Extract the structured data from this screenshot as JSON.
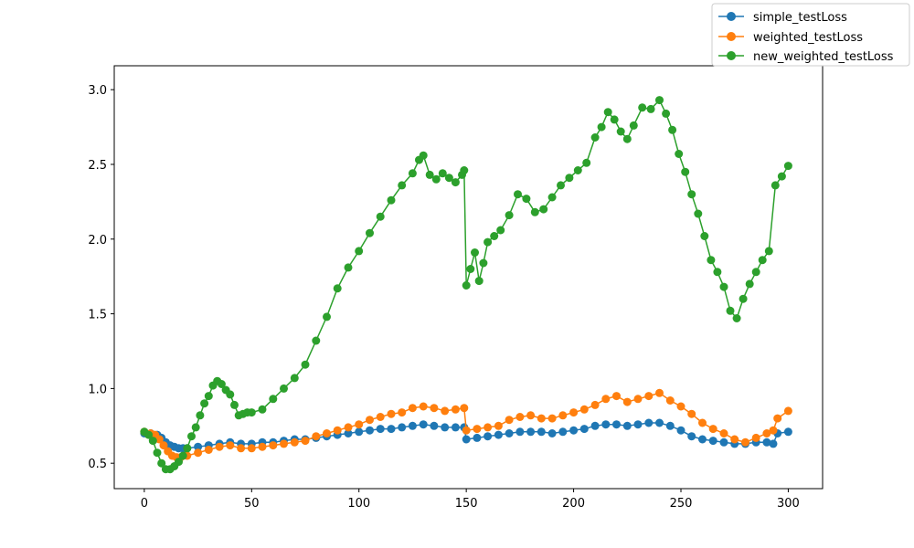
{
  "chart_data": {
    "type": "line",
    "title": "",
    "xlabel": "",
    "ylabel": "",
    "xlim": [
      -14,
      316
    ],
    "ylim": [
      0.33,
      3.16
    ],
    "x_ticks": [
      0,
      50,
      100,
      150,
      200,
      250,
      300
    ],
    "y_ticks": [
      0.5,
      1.0,
      1.5,
      2.0,
      2.5,
      3.0
    ],
    "x_tick_labels": [
      "0",
      "50",
      "100",
      "150",
      "200",
      "250",
      "300"
    ],
    "y_tick_labels": [
      "0.5",
      "1.0",
      "1.5",
      "2.0",
      "2.5",
      "3.0"
    ],
    "grid": false,
    "legend_position": "top-right",
    "marker": "circle",
    "series": [
      {
        "name": "simple_testLoss",
        "color": "#1f77b4",
        "points": [
          [
            0,
            0.7
          ],
          [
            3,
            0.7
          ],
          [
            6,
            0.69
          ],
          [
            8,
            0.67
          ],
          [
            10,
            0.64
          ],
          [
            12,
            0.62
          ],
          [
            14,
            0.61
          ],
          [
            16,
            0.6
          ],
          [
            18,
            0.6
          ],
          [
            20,
            0.6
          ],
          [
            25,
            0.61
          ],
          [
            30,
            0.62
          ],
          [
            35,
            0.63
          ],
          [
            40,
            0.64
          ],
          [
            45,
            0.63
          ],
          [
            50,
            0.63
          ],
          [
            55,
            0.64
          ],
          [
            60,
            0.64
          ],
          [
            65,
            0.65
          ],
          [
            70,
            0.66
          ],
          [
            75,
            0.66
          ],
          [
            80,
            0.67
          ],
          [
            85,
            0.68
          ],
          [
            90,
            0.69
          ],
          [
            95,
            0.7
          ],
          [
            100,
            0.71
          ],
          [
            105,
            0.72
          ],
          [
            110,
            0.73
          ],
          [
            115,
            0.73
          ],
          [
            120,
            0.74
          ],
          [
            125,
            0.75
          ],
          [
            130,
            0.76
          ],
          [
            135,
            0.75
          ],
          [
            140,
            0.74
          ],
          [
            145,
            0.74
          ],
          [
            149,
            0.74
          ],
          [
            150,
            0.66
          ],
          [
            155,
            0.67
          ],
          [
            160,
            0.68
          ],
          [
            165,
            0.69
          ],
          [
            170,
            0.7
          ],
          [
            175,
            0.71
          ],
          [
            180,
            0.71
          ],
          [
            185,
            0.71
          ],
          [
            190,
            0.7
          ],
          [
            195,
            0.71
          ],
          [
            200,
            0.72
          ],
          [
            205,
            0.73
          ],
          [
            210,
            0.75
          ],
          [
            215,
            0.76
          ],
          [
            220,
            0.76
          ],
          [
            225,
            0.75
          ],
          [
            230,
            0.76
          ],
          [
            235,
            0.77
          ],
          [
            240,
            0.77
          ],
          [
            245,
            0.75
          ],
          [
            250,
            0.72
          ],
          [
            255,
            0.68
          ],
          [
            260,
            0.66
          ],
          [
            265,
            0.65
          ],
          [
            270,
            0.64
          ],
          [
            275,
            0.63
          ],
          [
            280,
            0.63
          ],
          [
            285,
            0.64
          ],
          [
            290,
            0.64
          ],
          [
            293,
            0.63
          ],
          [
            295,
            0.7
          ],
          [
            300,
            0.71
          ]
        ]
      },
      {
        "name": "weighted_testLoss",
        "color": "#ff7f0e",
        "points": [
          [
            0,
            0.71
          ],
          [
            3,
            0.7
          ],
          [
            5,
            0.69
          ],
          [
            7,
            0.66
          ],
          [
            9,
            0.62
          ],
          [
            11,
            0.58
          ],
          [
            13,
            0.55
          ],
          [
            15,
            0.54
          ],
          [
            17,
            0.54
          ],
          [
            20,
            0.55
          ],
          [
            25,
            0.57
          ],
          [
            30,
            0.59
          ],
          [
            35,
            0.61
          ],
          [
            40,
            0.62
          ],
          [
            45,
            0.6
          ],
          [
            50,
            0.6
          ],
          [
            55,
            0.61
          ],
          [
            60,
            0.62
          ],
          [
            65,
            0.63
          ],
          [
            70,
            0.64
          ],
          [
            75,
            0.65
          ],
          [
            80,
            0.68
          ],
          [
            85,
            0.7
          ],
          [
            90,
            0.72
          ],
          [
            95,
            0.74
          ],
          [
            100,
            0.76
          ],
          [
            105,
            0.79
          ],
          [
            110,
            0.81
          ],
          [
            115,
            0.83
          ],
          [
            120,
            0.84
          ],
          [
            125,
            0.87
          ],
          [
            130,
            0.88
          ],
          [
            135,
            0.87
          ],
          [
            140,
            0.85
          ],
          [
            145,
            0.86
          ],
          [
            149,
            0.87
          ],
          [
            150,
            0.72
          ],
          [
            155,
            0.73
          ],
          [
            160,
            0.74
          ],
          [
            165,
            0.75
          ],
          [
            170,
            0.79
          ],
          [
            175,
            0.81
          ],
          [
            180,
            0.82
          ],
          [
            185,
            0.8
          ],
          [
            190,
            0.8
          ],
          [
            195,
            0.82
          ],
          [
            200,
            0.84
          ],
          [
            205,
            0.86
          ],
          [
            210,
            0.89
          ],
          [
            215,
            0.93
          ],
          [
            220,
            0.95
          ],
          [
            225,
            0.91
          ],
          [
            230,
            0.93
          ],
          [
            235,
            0.95
          ],
          [
            240,
            0.97
          ],
          [
            245,
            0.92
          ],
          [
            250,
            0.88
          ],
          [
            255,
            0.83
          ],
          [
            260,
            0.77
          ],
          [
            265,
            0.73
          ],
          [
            270,
            0.7
          ],
          [
            275,
            0.66
          ],
          [
            280,
            0.64
          ],
          [
            285,
            0.67
          ],
          [
            290,
            0.7
          ],
          [
            293,
            0.72
          ],
          [
            295,
            0.8
          ],
          [
            300,
            0.85
          ]
        ]
      },
      {
        "name": "new_weighted_testLoss",
        "color": "#2ca02c",
        "points": [
          [
            0,
            0.71
          ],
          [
            2,
            0.69
          ],
          [
            4,
            0.65
          ],
          [
            6,
            0.57
          ],
          [
            8,
            0.5
          ],
          [
            10,
            0.46
          ],
          [
            12,
            0.46
          ],
          [
            14,
            0.48
          ],
          [
            16,
            0.51
          ],
          [
            18,
            0.55
          ],
          [
            20,
            0.6
          ],
          [
            22,
            0.68
          ],
          [
            24,
            0.74
          ],
          [
            26,
            0.82
          ],
          [
            28,
            0.9
          ],
          [
            30,
            0.95
          ],
          [
            32,
            1.02
          ],
          [
            34,
            1.05
          ],
          [
            36,
            1.03
          ],
          [
            38,
            0.99
          ],
          [
            40,
            0.96
          ],
          [
            42,
            0.89
          ],
          [
            44,
            0.82
          ],
          [
            46,
            0.83
          ],
          [
            48,
            0.84
          ],
          [
            50,
            0.84
          ],
          [
            55,
            0.86
          ],
          [
            60,
            0.93
          ],
          [
            65,
            1.0
          ],
          [
            70,
            1.07
          ],
          [
            75,
            1.16
          ],
          [
            80,
            1.32
          ],
          [
            85,
            1.48
          ],
          [
            90,
            1.67
          ],
          [
            95,
            1.81
          ],
          [
            100,
            1.92
          ],
          [
            105,
            2.04
          ],
          [
            110,
            2.15
          ],
          [
            115,
            2.26
          ],
          [
            120,
            2.36
          ],
          [
            125,
            2.44
          ],
          [
            128,
            2.53
          ],
          [
            130,
            2.56
          ],
          [
            133,
            2.43
          ],
          [
            136,
            2.4
          ],
          [
            139,
            2.44
          ],
          [
            142,
            2.41
          ],
          [
            145,
            2.38
          ],
          [
            148,
            2.43
          ],
          [
            149,
            2.46
          ],
          [
            150,
            1.69
          ],
          [
            152,
            1.8
          ],
          [
            154,
            1.91
          ],
          [
            156,
            1.72
          ],
          [
            158,
            1.84
          ],
          [
            160,
            1.98
          ],
          [
            163,
            2.02
          ],
          [
            166,
            2.06
          ],
          [
            170,
            2.16
          ],
          [
            174,
            2.3
          ],
          [
            178,
            2.27
          ],
          [
            182,
            2.18
          ],
          [
            186,
            2.2
          ],
          [
            190,
            2.28
          ],
          [
            194,
            2.36
          ],
          [
            198,
            2.41
          ],
          [
            202,
            2.46
          ],
          [
            206,
            2.51
          ],
          [
            210,
            2.68
          ],
          [
            213,
            2.75
          ],
          [
            216,
            2.85
          ],
          [
            219,
            2.8
          ],
          [
            222,
            2.72
          ],
          [
            225,
            2.67
          ],
          [
            228,
            2.76
          ],
          [
            232,
            2.88
          ],
          [
            236,
            2.87
          ],
          [
            240,
            2.93
          ],
          [
            243,
            2.84
          ],
          [
            246,
            2.73
          ],
          [
            249,
            2.57
          ],
          [
            252,
            2.45
          ],
          [
            255,
            2.3
          ],
          [
            258,
            2.17
          ],
          [
            261,
            2.02
          ],
          [
            264,
            1.86
          ],
          [
            267,
            1.78
          ],
          [
            270,
            1.68
          ],
          [
            273,
            1.52
          ],
          [
            276,
            1.47
          ],
          [
            279,
            1.6
          ],
          [
            282,
            1.7
          ],
          [
            285,
            1.78
          ],
          [
            288,
            1.86
          ],
          [
            291,
            1.92
          ],
          [
            294,
            2.36
          ],
          [
            297,
            2.42
          ],
          [
            300,
            2.49
          ]
        ]
      }
    ]
  }
}
